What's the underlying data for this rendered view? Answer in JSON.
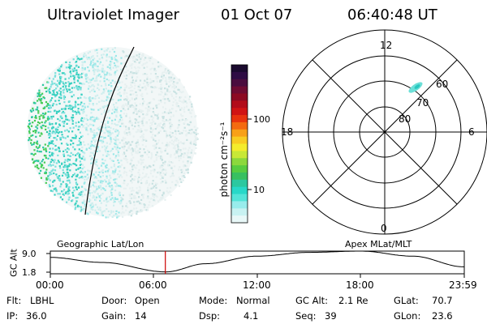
{
  "header": {
    "instrument": "Ultraviolet Imager",
    "date": "01 Oct 07",
    "time": "06:40:48 UT"
  },
  "colorbar": {
    "label": "photon cm⁻²s⁻¹",
    "ticks": [
      "100",
      "10"
    ],
    "colors": [
      "#1a0a2e",
      "#2e0c44",
      "#4a0d3e",
      "#6e0c32",
      "#8c0a22",
      "#b20c1a",
      "#d01414",
      "#e8330e",
      "#f46a10",
      "#f8a018",
      "#f8cc22",
      "#f4ec2c",
      "#c8e836",
      "#8cd83c",
      "#58cc40",
      "#38c060",
      "#2cc8a0",
      "#28d8c8",
      "#54e4d8",
      "#98ecec",
      "#c8f2f2",
      "#e8f8f8"
    ]
  },
  "polar_plot": {
    "mlt_labels": {
      "top": "12",
      "left": "18",
      "right": "6",
      "bottom": "0"
    },
    "lat_labels": [
      "60",
      "70",
      "80"
    ]
  },
  "altitude_plot": {
    "y_label": "GC Alt",
    "y_ticks": [
      "9.0",
      "1.8"
    ],
    "x_ticks": [
      "00:00",
      "06:00",
      "12:00",
      "18:00",
      "23:59"
    ],
    "left_title": "Geographic Lat/Lon",
    "right_title": "Apex MLat/MLT",
    "marker_color": "#cc0000"
  },
  "footer": {
    "filter": {
      "label": "Flt:",
      "value": "LBHL"
    },
    "ip": {
      "label": "IP:",
      "value": "36.0"
    },
    "door": {
      "label": "Door:",
      "value": "Open"
    },
    "gain": {
      "label": "Gain:",
      "value": "14"
    },
    "mode": {
      "label": "Mode:",
      "value": "Normal"
    },
    "dsp": {
      "label": "Dsp:",
      "value": "4.1"
    },
    "gc_alt": {
      "label": "GC Alt:",
      "value": "2.1 Re"
    },
    "seq": {
      "label": "Seq:",
      "value": "39"
    },
    "glat": {
      "label": "GLat:",
      "value": "70.7"
    },
    "glon": {
      "label": "GLon:",
      "value": "23.6"
    }
  },
  "chart_data": {
    "type": "line",
    "title": "GC Alt",
    "x": [
      "00:00",
      "06:00",
      "12:00",
      "18:00",
      "23:59"
    ],
    "series": [
      {
        "name": "GC Alt",
        "values": [
          7.0,
          3.2,
          7.5,
          9.0,
          4.0
        ]
      }
    ],
    "current_time": "06:40",
    "ylim": [
      1.8,
      9.0
    ]
  }
}
